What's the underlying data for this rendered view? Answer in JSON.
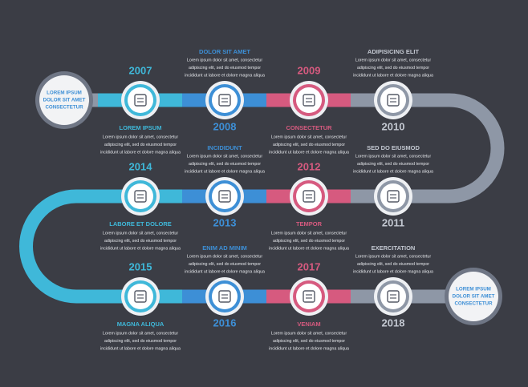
{
  "start": {
    "label": [
      "LOREM IPSUM",
      "DOLOR SIT AMET",
      "CONSECTETUR"
    ]
  },
  "end": {
    "label": [
      "LOREM IPSUM",
      "DOLOR SIT AMET",
      "CONSECTETUR"
    ]
  },
  "nodes": [
    {
      "year": "2007",
      "title": "LOREM IPSUM",
      "description": [
        "Lorem ipsum dolor sit amet, consectetur",
        "adipiscing elit, sed do eiusmod tempor",
        "incididunt ut labore et dolore magna aliqua"
      ]
    },
    {
      "year": "2008",
      "title": "DOLOR SIT AMET",
      "description": [
        "Lorem ipsum dolor sit amet, consectetur",
        "adipiscing elit, sed do eiusmod tempor",
        "incididunt ut labore et dolore magna aliqua"
      ]
    },
    {
      "year": "2009",
      "title": "CONSECTETUR",
      "description": [
        "Lorem ipsum dolor sit amet, consectetur",
        "adipiscing elit, sed do eiusmod tempor",
        "incididunt ut labore et dolore magna aliqua"
      ]
    },
    {
      "year": "2010",
      "title": "ADIPISICING ELIT",
      "description": [
        "Lorem ipsum dolor sit amet, consectetur",
        "adipiscing elit, sed do eiusmod tempor",
        "incididunt ut labore et dolore magna aliqua"
      ]
    },
    {
      "year": "2011",
      "title": "SED DO EIUSMOD",
      "description": [
        "Lorem ipsum dolor sit amet, consectetur",
        "adipiscing elit, sed do eiusmod tempor",
        "incididunt ut labore et dolore magna aliqua"
      ]
    },
    {
      "year": "2012",
      "title": "TEMPOR",
      "description": [
        "Lorem ipsum dolor sit amet, consectetur",
        "adipiscing elit, sed do eiusmod tempor",
        "incididunt ut labore et dolore magna aliqua"
      ]
    },
    {
      "year": "2013",
      "title": "INCIDIDUNT",
      "description": [
        "Lorem ipsum dolor sit amet, consectetur",
        "adipiscing elit, sed do eiusmod tempor",
        "incididunt ut labore et dolore magna aliqua"
      ]
    },
    {
      "year": "2014",
      "title": "LABORE ET DOLORE",
      "description": [
        "Lorem ipsum dolor sit amet, consectetur",
        "adipiscing elit, sed do eiusmod tempor",
        "incididunt ut labore et dolore magna aliqua"
      ]
    },
    {
      "year": "2015",
      "title": "MAGNA ALIQUA",
      "description": [
        "Lorem ipsum dolor sit amet, consectetur",
        "adipiscing elit, sed do eiusmod tempor",
        "incididunt ut labore et dolore magna aliqua"
      ]
    },
    {
      "year": "2016",
      "title": "ENIM AD MINIM",
      "description": [
        "Lorem ipsum dolor sit amet, consectetur",
        "adipiscing elit, sed do eiusmod tempor",
        "incididunt ut labore et dolore magna aliqua"
      ]
    },
    {
      "year": "2017",
      "title": "VENIAM",
      "description": [
        "Lorem ipsum dolor sit amet, consectetur",
        "adipiscing elit, sed do eiusmod tempor",
        "incididunt ut labore et dolore magna aliqua"
      ]
    },
    {
      "year": "2018",
      "title": "EXERCITATION",
      "description": [
        "Lorem ipsum dolor sit amet, consectetur",
        "adipiscing elit, sed do eiusmod tempor",
        "incididunt ut labore et dolore magna aliqua"
      ]
    }
  ]
}
